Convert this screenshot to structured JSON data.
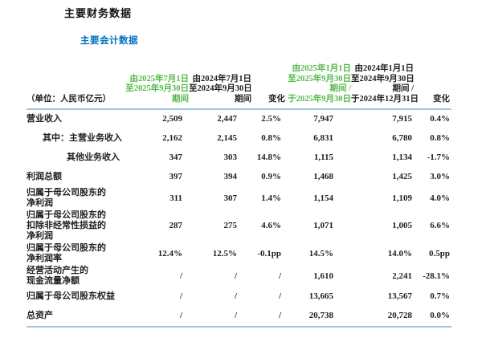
{
  "page": {
    "title": "主要财务数据",
    "subtitle": "主要会计数据"
  },
  "colors": {
    "green_accent": "#53B948",
    "blue_accent": "#0070C0",
    "rule_blue": "#9DC3E6",
    "text": "#1F1F1F"
  },
  "table": {
    "unit_label": "（单位：人民币亿元）",
    "columns": [
      {
        "id": "period-2025q3",
        "lines": [
          "由2025年7月1日",
          "至2025年9月30日",
          "期间"
        ],
        "green": true
      },
      {
        "id": "period-2024q3",
        "lines": [
          "由2024年7月1日",
          "至2024年9月30日",
          "期间"
        ],
        "green": false
      },
      {
        "id": "change-quarter",
        "lines": [
          "变化"
        ],
        "green": false
      },
      {
        "id": "period-2025ytd",
        "lines": [
          "由2025年1月1日",
          "至2025年9月30日",
          "期间 /",
          "于2025年9月30日"
        ],
        "green": true
      },
      {
        "id": "period-2024ytd",
        "lines": [
          "由2024年1月1日",
          "至2024年9月30日",
          "期间 /",
          "于2024年12月31日"
        ],
        "green": false
      },
      {
        "id": "change-ytd",
        "lines": [
          "变化"
        ],
        "green": false
      }
    ],
    "rows": [
      {
        "label_lines": [
          "营业收入"
        ],
        "indent": 0,
        "values": [
          "2,509",
          "2,447",
          "2.5%",
          "7,947",
          "7,915",
          "0.4%"
        ]
      },
      {
        "label_lines": [
          "其中：主营业务收入"
        ],
        "indent": 1,
        "values": [
          "2,162",
          "2,145",
          "0.8%",
          "6,831",
          "6,780",
          "0.8%"
        ]
      },
      {
        "label_lines": [
          "其他业务收入"
        ],
        "indent": 2,
        "values": [
          "347",
          "303",
          "14.8%",
          "1,115",
          "1,134",
          "-1.7%"
        ]
      },
      {
        "label_lines": [
          "利润总额"
        ],
        "indent": 0,
        "values": [
          "397",
          "394",
          "0.9%",
          "1,468",
          "1,425",
          "3.0%"
        ]
      },
      {
        "label_lines": [
          "归属于母公司股东的",
          "净利润"
        ],
        "indent": 0,
        "values": [
          "311",
          "307",
          "1.4%",
          "1,154",
          "1,109",
          "4.0%"
        ]
      },
      {
        "label_lines": [
          "归属于母公司股东的",
          "扣除非经常性损益的",
          "净利润"
        ],
        "indent": 0,
        "values": [
          "287",
          "275",
          "4.6%",
          "1,071",
          "1,005",
          "6.6%"
        ]
      },
      {
        "label_lines": [
          "归属于母公司股东的",
          "净利润率"
        ],
        "indent": 0,
        "values": [
          "12.4%",
          "12.5%",
          "-0.1pp",
          "14.5%",
          "14.0%",
          "0.5pp"
        ]
      },
      {
        "label_lines": [
          "经营活动产生的",
          "现金流量净额"
        ],
        "indent": 0,
        "values": [
          "/",
          "/",
          "/",
          "1,610",
          "2,241",
          "-28.1%"
        ]
      },
      {
        "label_lines": [
          "归属于母公司股东权益"
        ],
        "indent": 0,
        "values": [
          "/",
          "/",
          "/",
          "13,665",
          "13,567",
          "0.7%"
        ]
      },
      {
        "label_lines": [
          "总资产"
        ],
        "indent": 0,
        "values": [
          "/",
          "/",
          "/",
          "20,738",
          "20,728",
          "0.0%"
        ]
      }
    ]
  }
}
